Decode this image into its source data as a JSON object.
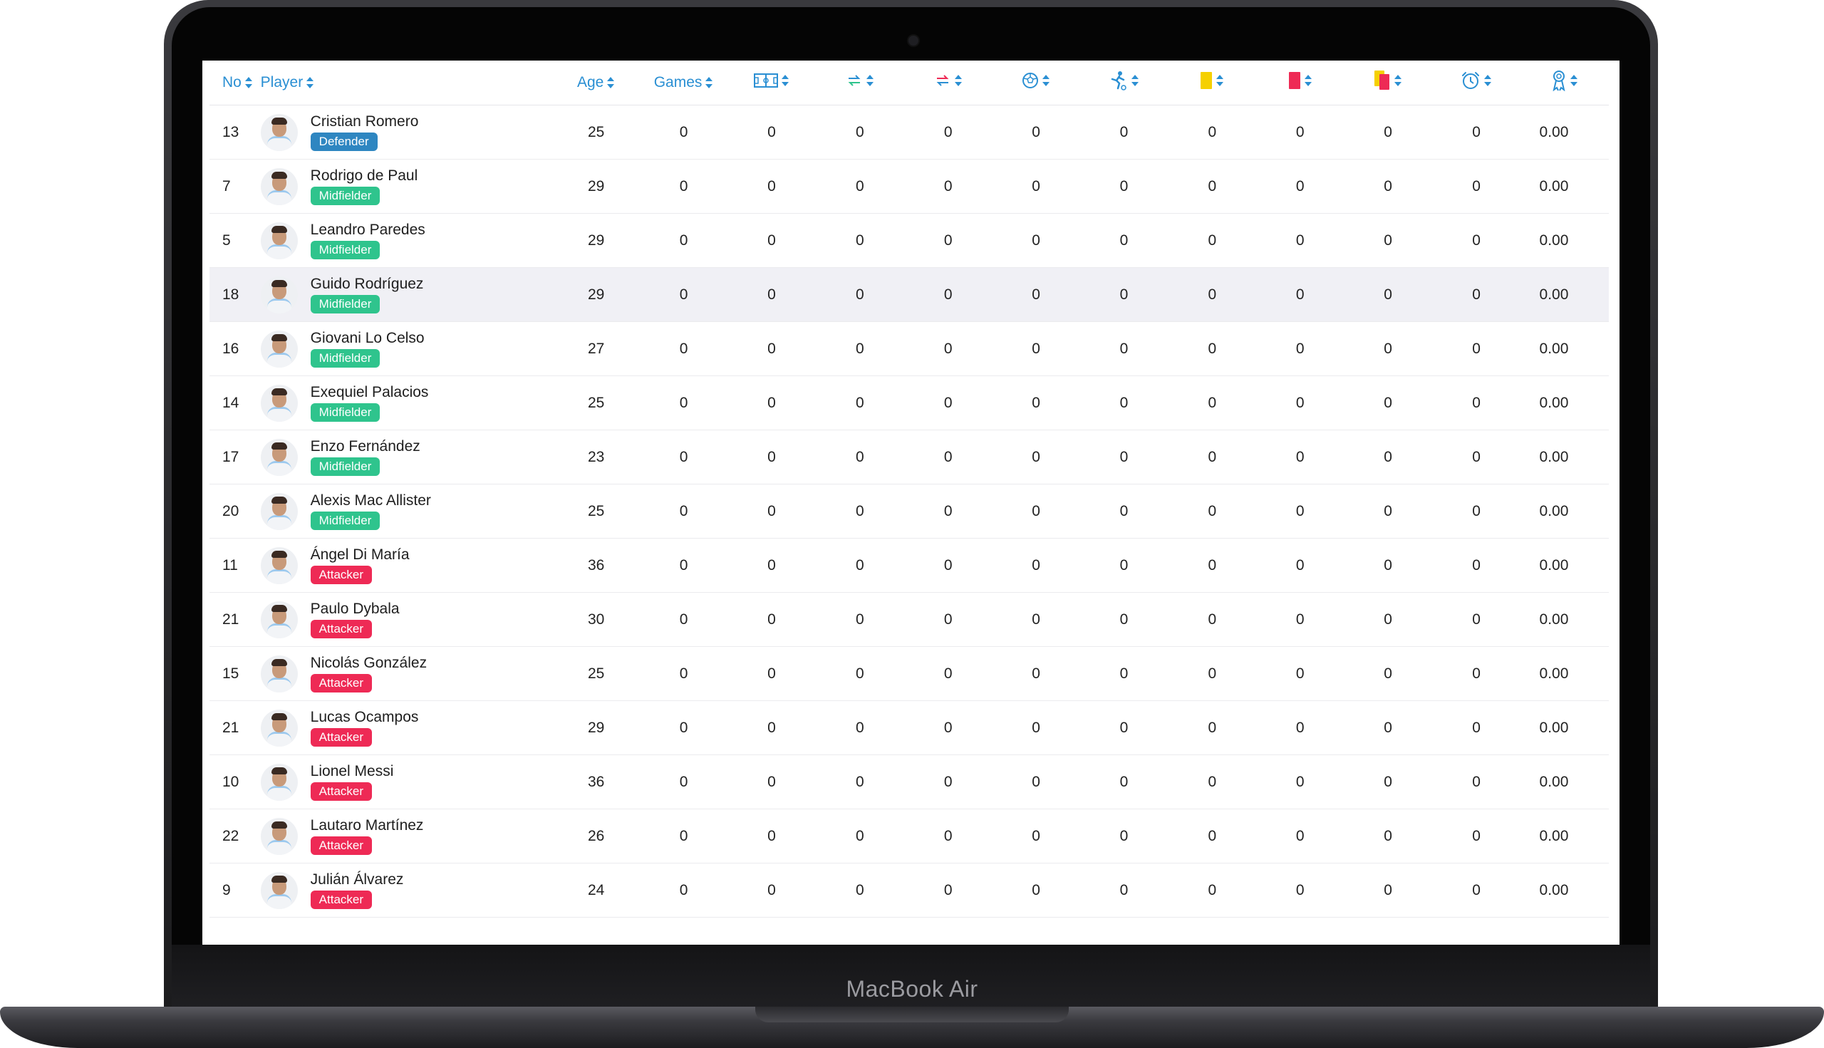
{
  "device": {
    "brand": "MacBook Air"
  },
  "columns": {
    "no": "No",
    "player": "Player",
    "age": "Age",
    "games": "Games",
    "icons": [
      {
        "name": "lineup-icon"
      },
      {
        "name": "sub-in-icon"
      },
      {
        "name": "sub-out-icon"
      },
      {
        "name": "goal-ball-icon"
      },
      {
        "name": "assist-icon"
      },
      {
        "name": "yellow-card-icon",
        "color": "#f5d000"
      },
      {
        "name": "red-card-icon",
        "color": "#ee2a55"
      },
      {
        "name": "second-yellow-icon",
        "color": "#f5d000"
      },
      {
        "name": "minutes-clock-icon"
      },
      {
        "name": "rating-ribbon-icon"
      }
    ]
  },
  "players": [
    {
      "no": "13",
      "name": "Cristian Romero",
      "position": "Defender",
      "age": "25",
      "games": "0",
      "lineups": "0",
      "sub_in": "0",
      "sub_out": "0",
      "goals": "0",
      "assists": "0",
      "yellow": "0",
      "red": "0",
      "yellow_red": "0",
      "minutes": "0",
      "rating": "0.00"
    },
    {
      "no": "7",
      "name": "Rodrigo de Paul",
      "position": "Midfielder",
      "age": "29",
      "games": "0",
      "lineups": "0",
      "sub_in": "0",
      "sub_out": "0",
      "goals": "0",
      "assists": "0",
      "yellow": "0",
      "red": "0",
      "yellow_red": "0",
      "minutes": "0",
      "rating": "0.00"
    },
    {
      "no": "5",
      "name": "Leandro Paredes",
      "position": "Midfielder",
      "age": "29",
      "games": "0",
      "lineups": "0",
      "sub_in": "0",
      "sub_out": "0",
      "goals": "0",
      "assists": "0",
      "yellow": "0",
      "red": "0",
      "yellow_red": "0",
      "minutes": "0",
      "rating": "0.00"
    },
    {
      "no": "18",
      "name": "Guido Rodríguez",
      "position": "Midfielder",
      "age": "29",
      "games": "0",
      "lineups": "0",
      "sub_in": "0",
      "sub_out": "0",
      "goals": "0",
      "assists": "0",
      "yellow": "0",
      "red": "0",
      "yellow_red": "0",
      "minutes": "0",
      "rating": "0.00",
      "highlighted": true
    },
    {
      "no": "16",
      "name": "Giovani Lo Celso",
      "position": "Midfielder",
      "age": "27",
      "games": "0",
      "lineups": "0",
      "sub_in": "0",
      "sub_out": "0",
      "goals": "0",
      "assists": "0",
      "yellow": "0",
      "red": "0",
      "yellow_red": "0",
      "minutes": "0",
      "rating": "0.00"
    },
    {
      "no": "14",
      "name": "Exequiel Palacios",
      "position": "Midfielder",
      "age": "25",
      "games": "0",
      "lineups": "0",
      "sub_in": "0",
      "sub_out": "0",
      "goals": "0",
      "assists": "0",
      "yellow": "0",
      "red": "0",
      "yellow_red": "0",
      "minutes": "0",
      "rating": "0.00"
    },
    {
      "no": "17",
      "name": "Enzo Fernández",
      "position": "Midfielder",
      "age": "23",
      "games": "0",
      "lineups": "0",
      "sub_in": "0",
      "sub_out": "0",
      "goals": "0",
      "assists": "0",
      "yellow": "0",
      "red": "0",
      "yellow_red": "0",
      "minutes": "0",
      "rating": "0.00"
    },
    {
      "no": "20",
      "name": "Alexis Mac Allister",
      "position": "Midfielder",
      "age": "25",
      "games": "0",
      "lineups": "0",
      "sub_in": "0",
      "sub_out": "0",
      "goals": "0",
      "assists": "0",
      "yellow": "0",
      "red": "0",
      "yellow_red": "0",
      "minutes": "0",
      "rating": "0.00"
    },
    {
      "no": "11",
      "name": "Ángel Di María",
      "position": "Attacker",
      "age": "36",
      "games": "0",
      "lineups": "0",
      "sub_in": "0",
      "sub_out": "0",
      "goals": "0",
      "assists": "0",
      "yellow": "0",
      "red": "0",
      "yellow_red": "0",
      "minutes": "0",
      "rating": "0.00"
    },
    {
      "no": "21",
      "name": "Paulo Dybala",
      "position": "Attacker",
      "age": "30",
      "games": "0",
      "lineups": "0",
      "sub_in": "0",
      "sub_out": "0",
      "goals": "0",
      "assists": "0",
      "yellow": "0",
      "red": "0",
      "yellow_red": "0",
      "minutes": "0",
      "rating": "0.00"
    },
    {
      "no": "15",
      "name": "Nicolás González",
      "position": "Attacker",
      "age": "25",
      "games": "0",
      "lineups": "0",
      "sub_in": "0",
      "sub_out": "0",
      "goals": "0",
      "assists": "0",
      "yellow": "0",
      "red": "0",
      "yellow_red": "0",
      "minutes": "0",
      "rating": "0.00"
    },
    {
      "no": "21",
      "name": "Lucas Ocampos",
      "position": "Attacker",
      "age": "29",
      "games": "0",
      "lineups": "0",
      "sub_in": "0",
      "sub_out": "0",
      "goals": "0",
      "assists": "0",
      "yellow": "0",
      "red": "0",
      "yellow_red": "0",
      "minutes": "0",
      "rating": "0.00"
    },
    {
      "no": "10",
      "name": "Lionel Messi",
      "position": "Attacker",
      "age": "36",
      "games": "0",
      "lineups": "0",
      "sub_in": "0",
      "sub_out": "0",
      "goals": "0",
      "assists": "0",
      "yellow": "0",
      "red": "0",
      "yellow_red": "0",
      "minutes": "0",
      "rating": "0.00"
    },
    {
      "no": "22",
      "name": "Lautaro Martínez",
      "position": "Attacker",
      "age": "26",
      "games": "0",
      "lineups": "0",
      "sub_in": "0",
      "sub_out": "0",
      "goals": "0",
      "assists": "0",
      "yellow": "0",
      "red": "0",
      "yellow_red": "0",
      "minutes": "0",
      "rating": "0.00"
    },
    {
      "no": "9",
      "name": "Julián Álvarez",
      "position": "Attacker",
      "age": "24",
      "games": "0",
      "lineups": "0",
      "sub_in": "0",
      "sub_out": "0",
      "goals": "0",
      "assists": "0",
      "yellow": "0",
      "red": "0",
      "yellow_red": "0",
      "minutes": "0",
      "rating": "0.00"
    }
  ]
}
